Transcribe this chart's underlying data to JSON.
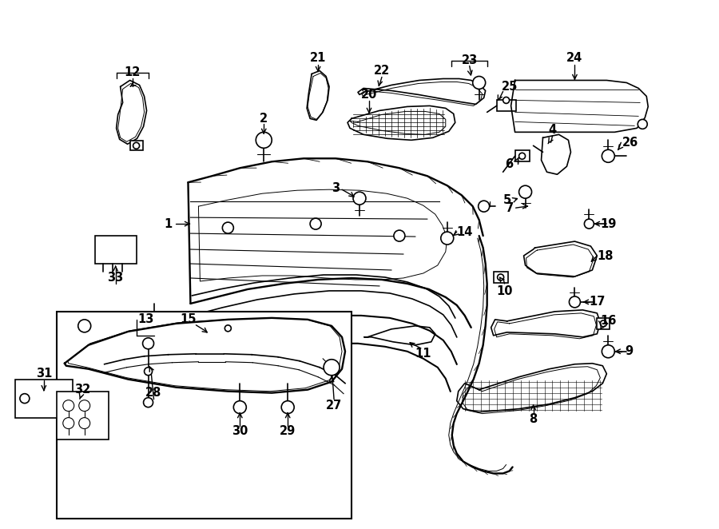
{
  "bg_color": "#ffffff",
  "lc": "#000000",
  "lw": 1.2,
  "figsize": [
    9.0,
    6.62
  ],
  "dpi": 100,
  "label_fontsize": 10.5
}
